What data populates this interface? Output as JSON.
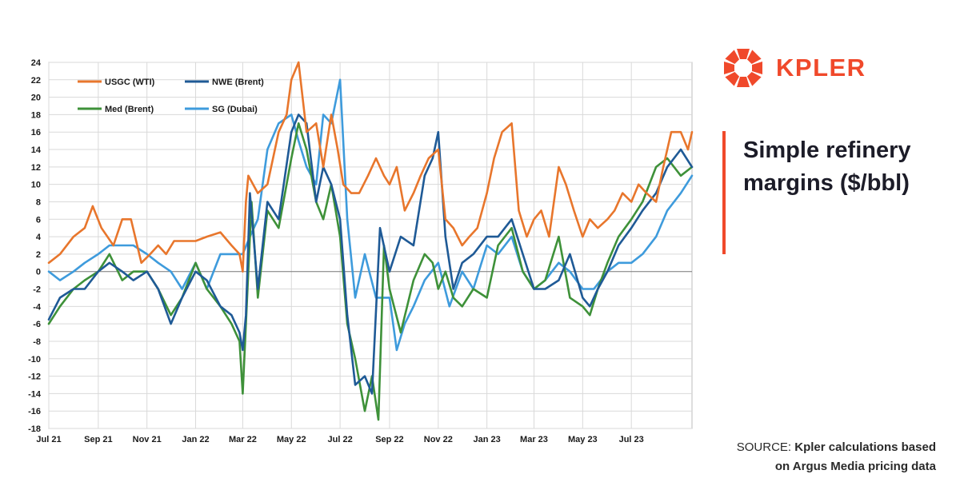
{
  "brand": {
    "name": "KPLER",
    "logo_icon": "kpler-logo-icon",
    "color": "#f0492b"
  },
  "title": "Simple refinery margins ($/bbl)",
  "source": {
    "prefix": "SOURCE: ",
    "text": "Kpler calculations based on Argus Media pricing data"
  },
  "chart_data": {
    "type": "line",
    "ylim": [
      -18,
      24
    ],
    "yticks": [
      24,
      22,
      20,
      18,
      16,
      14,
      12,
      10,
      8,
      6,
      4,
      2,
      0,
      -2,
      -4,
      -6,
      -8,
      -10,
      -12,
      -14,
      -16,
      -18
    ],
    "xrange": [
      "2021-07-01",
      "2023-09-15"
    ],
    "xticks": [
      {
        "date": "2021-07-01",
        "label": "Jul 21"
      },
      {
        "date": "2021-09-01",
        "label": "Sep 21"
      },
      {
        "date": "2021-11-01",
        "label": "Nov 21"
      },
      {
        "date": "2022-01-01",
        "label": "Jan 22"
      },
      {
        "date": "2022-03-01",
        "label": "Mar 22"
      },
      {
        "date": "2022-05-01",
        "label": "May 22"
      },
      {
        "date": "2022-07-01",
        "label": "Jul 22"
      },
      {
        "date": "2022-09-01",
        "label": "Sep 22"
      },
      {
        "date": "2022-11-01",
        "label": "Nov 22"
      },
      {
        "date": "2023-01-01",
        "label": "Jan 23"
      },
      {
        "date": "2023-03-01",
        "label": "Mar 23"
      },
      {
        "date": "2023-05-01",
        "label": "May 23"
      },
      {
        "date": "2023-07-01",
        "label": "Jul 23"
      }
    ],
    "grid": true,
    "legend_position": "top-left",
    "series": [
      {
        "name": "USGC (WTI)",
        "color": "#e8762c",
        "dates": [
          "2021-07-01",
          "2021-07-15",
          "2021-08-01",
          "2021-08-15",
          "2021-08-25",
          "2021-09-05",
          "2021-09-20",
          "2021-10-01",
          "2021-10-12",
          "2021-10-25",
          "2021-11-05",
          "2021-11-15",
          "2021-11-25",
          "2021-12-05",
          "2021-12-20",
          "2022-01-01",
          "2022-01-15",
          "2022-02-01",
          "2022-02-15",
          "2022-02-25",
          "2022-03-01",
          "2022-03-05",
          "2022-03-08",
          "2022-03-20",
          "2022-04-01",
          "2022-04-15",
          "2022-04-25",
          "2022-05-01",
          "2022-05-10",
          "2022-05-20",
          "2022-06-01",
          "2022-06-10",
          "2022-06-20",
          "2022-06-28",
          "2022-07-05",
          "2022-07-15",
          "2022-07-25",
          "2022-08-05",
          "2022-08-15",
          "2022-08-25",
          "2022-09-01",
          "2022-09-10",
          "2022-09-20",
          "2022-10-01",
          "2022-10-10",
          "2022-10-20",
          "2022-11-01",
          "2022-11-10",
          "2022-11-20",
          "2022-12-01",
          "2022-12-10",
          "2022-12-20",
          "2023-01-01",
          "2023-01-10",
          "2023-01-20",
          "2023-02-01",
          "2023-02-10",
          "2023-02-20",
          "2023-03-01",
          "2023-03-10",
          "2023-03-20",
          "2023-04-01",
          "2023-04-10",
          "2023-04-20",
          "2023-05-01",
          "2023-05-10",
          "2023-05-20",
          "2023-06-01",
          "2023-06-10",
          "2023-06-20",
          "2023-07-01",
          "2023-07-10",
          "2023-07-20",
          "2023-08-01",
          "2023-08-10",
          "2023-08-20",
          "2023-09-01",
          "2023-09-10",
          "2023-09-15"
        ],
        "values": [
          1,
          2,
          4,
          5,
          7.5,
          5,
          3,
          6,
          6,
          1,
          2,
          3,
          2,
          3.5,
          3.5,
          3.5,
          4,
          4.5,
          3,
          2,
          0,
          8,
          11,
          9,
          10,
          16,
          18,
          22,
          24,
          16,
          17,
          12,
          18,
          14,
          10,
          9,
          9,
          11,
          13,
          11,
          10,
          12,
          7,
          9,
          11,
          13,
          14,
          6,
          5,
          3,
          4,
          5,
          9,
          13,
          16,
          17,
          7,
          4,
          6,
          7,
          4,
          12,
          10,
          7,
          4,
          6,
          5,
          6,
          7,
          9,
          8,
          10,
          9,
          8,
          12,
          16,
          16,
          14,
          16
        ]
      },
      {
        "name": "NWE (Brent)",
        "color": "#1f5a96",
        "dates": [
          "2021-07-01",
          "2021-07-15",
          "2021-08-01",
          "2021-08-15",
          "2021-09-01",
          "2021-09-15",
          "2021-10-01",
          "2021-10-15",
          "2021-11-01",
          "2021-11-15",
          "2021-12-01",
          "2021-12-15",
          "2022-01-01",
          "2022-01-15",
          "2022-02-01",
          "2022-02-15",
          "2022-02-25",
          "2022-03-01",
          "2022-03-05",
          "2022-03-10",
          "2022-03-20",
          "2022-04-01",
          "2022-04-15",
          "2022-05-01",
          "2022-05-10",
          "2022-05-20",
          "2022-06-01",
          "2022-06-10",
          "2022-06-20",
          "2022-07-01",
          "2022-07-10",
          "2022-07-20",
          "2022-08-01",
          "2022-08-10",
          "2022-08-20",
          "2022-09-01",
          "2022-09-15",
          "2022-10-01",
          "2022-10-15",
          "2022-10-25",
          "2022-11-01",
          "2022-11-10",
          "2022-11-20",
          "2022-12-01",
          "2022-12-15",
          "2023-01-01",
          "2023-01-15",
          "2023-02-01",
          "2023-02-15",
          "2023-03-01",
          "2023-03-15",
          "2023-04-01",
          "2023-04-15",
          "2023-05-01",
          "2023-05-10",
          "2023-05-20",
          "2023-06-01",
          "2023-06-15",
          "2023-07-01",
          "2023-07-15",
          "2023-08-01",
          "2023-08-15",
          "2023-09-01",
          "2023-09-15"
        ],
        "values": [
          -5.5,
          -3,
          -2,
          -2,
          0,
          1,
          0,
          -1,
          0,
          -2,
          -6,
          -3,
          0,
          -1,
          -4,
          -5,
          -7,
          -9,
          -5,
          9,
          -2,
          8,
          6,
          16,
          18,
          17,
          8,
          12,
          10,
          6,
          -5,
          -13,
          -12,
          -14,
          5,
          0,
          4,
          3,
          11,
          13,
          16,
          4,
          -2,
          1,
          2,
          4,
          4,
          6,
          2,
          -2,
          -2,
          -1,
          2,
          -3,
          -4,
          -2,
          0,
          3,
          5,
          7,
          9,
          12,
          14,
          12
        ]
      },
      {
        "name": "Med (Brent)",
        "color": "#3e9139",
        "dates": [
          "2021-07-01",
          "2021-07-15",
          "2021-08-01",
          "2021-08-15",
          "2021-09-01",
          "2021-09-15",
          "2021-10-01",
          "2021-10-15",
          "2021-11-01",
          "2021-11-15",
          "2021-12-01",
          "2021-12-15",
          "2022-01-01",
          "2022-01-15",
          "2022-02-01",
          "2022-02-15",
          "2022-02-25",
          "2022-03-01",
          "2022-03-05",
          "2022-03-12",
          "2022-03-20",
          "2022-04-01",
          "2022-04-15",
          "2022-05-01",
          "2022-05-10",
          "2022-05-20",
          "2022-06-01",
          "2022-06-10",
          "2022-06-20",
          "2022-07-01",
          "2022-07-10",
          "2022-07-20",
          "2022-08-01",
          "2022-08-10",
          "2022-08-18",
          "2022-08-25",
          "2022-09-01",
          "2022-09-15",
          "2022-10-01",
          "2022-10-15",
          "2022-10-25",
          "2022-11-01",
          "2022-11-10",
          "2022-11-20",
          "2022-12-01",
          "2022-12-15",
          "2023-01-01",
          "2023-01-15",
          "2023-02-01",
          "2023-02-15",
          "2023-03-01",
          "2023-03-15",
          "2023-04-01",
          "2023-04-15",
          "2023-05-01",
          "2023-05-10",
          "2023-05-20",
          "2023-06-01",
          "2023-06-15",
          "2023-07-01",
          "2023-07-15",
          "2023-08-01",
          "2023-08-15",
          "2023-09-01",
          "2023-09-15"
        ],
        "values": [
          -6,
          -4,
          -2,
          -1,
          0,
          2,
          -1,
          0,
          0,
          -2,
          -5,
          -3,
          1,
          -2,
          -4,
          -6,
          -8,
          -14,
          -6,
          8,
          -3,
          7,
          5,
          13,
          17,
          14,
          8,
          6,
          10,
          4,
          -6,
          -10,
          -16,
          -12,
          -17,
          3,
          -2,
          -7,
          -1,
          2,
          1,
          -2,
          0,
          -3,
          -4,
          -2,
          -3,
          3,
          5,
          0,
          -2,
          -1,
          4,
          -3,
          -4,
          -5,
          -2,
          1,
          4,
          6,
          8,
          12,
          13,
          11,
          12
        ]
      },
      {
        "name": "SG (Dubai)",
        "color": "#3e9bdc",
        "dates": [
          "2021-07-01",
          "2021-07-15",
          "2021-08-01",
          "2021-08-15",
          "2021-09-01",
          "2021-09-15",
          "2021-10-01",
          "2021-10-15",
          "2021-11-01",
          "2021-11-15",
          "2021-12-01",
          "2021-12-15",
          "2022-01-01",
          "2022-01-15",
          "2022-02-01",
          "2022-02-15",
          "2022-03-01",
          "2022-03-10",
          "2022-03-20",
          "2022-04-01",
          "2022-04-15",
          "2022-05-01",
          "2022-05-10",
          "2022-05-20",
          "2022-06-01",
          "2022-06-10",
          "2022-06-20",
          "2022-07-01",
          "2022-07-10",
          "2022-07-20",
          "2022-08-01",
          "2022-08-15",
          "2022-09-01",
          "2022-09-10",
          "2022-09-20",
          "2022-10-01",
          "2022-10-15",
          "2022-11-01",
          "2022-11-15",
          "2022-12-01",
          "2022-12-15",
          "2023-01-01",
          "2023-01-15",
          "2023-02-01",
          "2023-02-15",
          "2023-03-01",
          "2023-03-15",
          "2023-04-01",
          "2023-04-15",
          "2023-05-01",
          "2023-05-15",
          "2023-06-01",
          "2023-06-15",
          "2023-07-01",
          "2023-07-15",
          "2023-08-01",
          "2023-08-15",
          "2023-09-01",
          "2023-09-15"
        ],
        "values": [
          0,
          -1,
          0,
          1,
          2,
          3,
          3,
          3,
          2,
          1,
          0,
          -2,
          1,
          -2,
          2,
          2,
          2,
          4,
          6,
          14,
          17,
          18,
          15,
          12,
          10,
          18,
          17,
          22,
          6,
          -3,
          2,
          -3,
          -3,
          -9,
          -6,
          -4,
          -1,
          1,
          -4,
          0,
          -2,
          3,
          2,
          4,
          0,
          -2,
          -1,
          1,
          0,
          -2,
          -2,
          0,
          1,
          1,
          2,
          4,
          7,
          9,
          11
        ]
      }
    ]
  }
}
